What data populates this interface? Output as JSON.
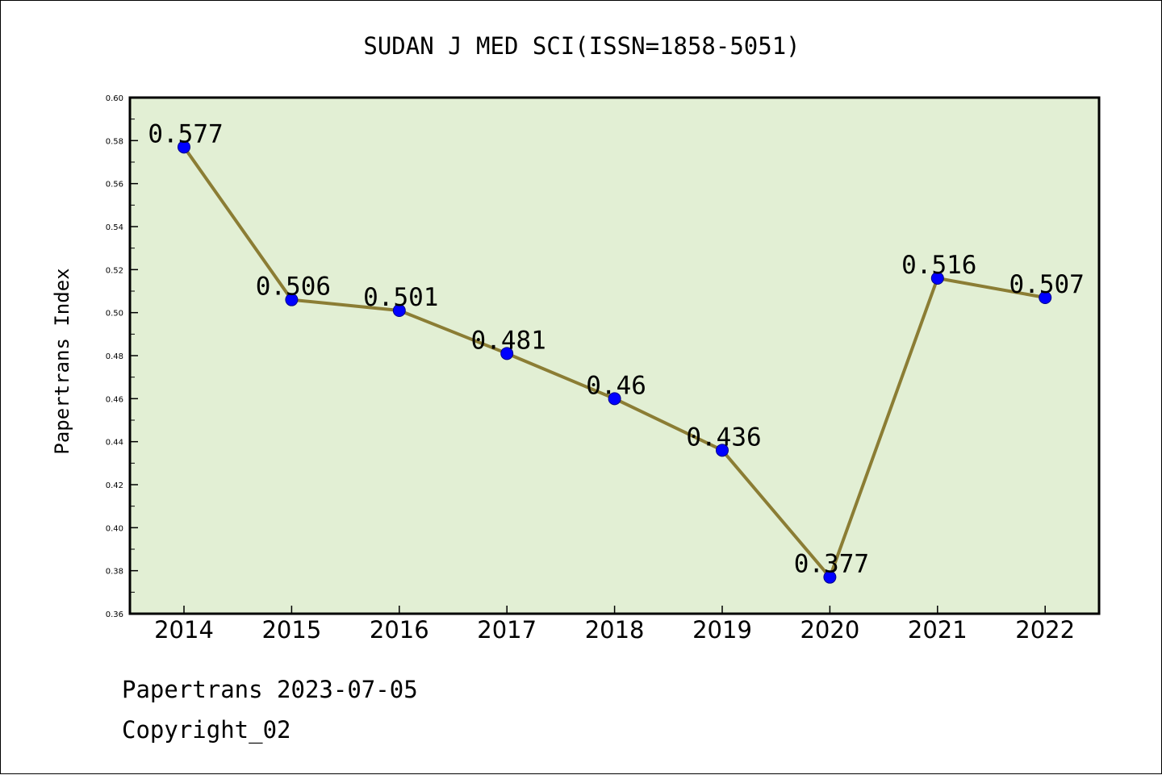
{
  "chart_data": {
    "type": "line",
    "title": "SUDAN J MED SCI(ISSN=1858-5051)",
    "xlabel": "",
    "ylabel": "Papertrans Index",
    "categories": [
      "2014",
      "2015",
      "2016",
      "2017",
      "2018",
      "2019",
      "2020",
      "2021",
      "2022"
    ],
    "values": [
      0.577,
      0.506,
      0.501,
      0.481,
      0.46,
      0.436,
      0.377,
      0.516,
      0.507
    ],
    "data_labels": [
      "0.577",
      "0.506",
      "0.501",
      "0.481",
      "0.46",
      "0.436",
      "0.377",
      "0.516",
      "0.507"
    ],
    "ylim": [
      0.36,
      0.6
    ],
    "yticks": [
      "0.36",
      "0.38",
      "0.40",
      "0.42",
      "0.44",
      "0.46",
      "0.48",
      "0.50",
      "0.52",
      "0.54",
      "0.56",
      "0.58",
      "0.60"
    ],
    "grid": false,
    "legend": "none",
    "colors": {
      "plot_background": "#e2efd4",
      "line": "#8b7d34",
      "marker": "#0000ff"
    }
  },
  "footer": {
    "line1": "Papertrans 2023-07-05",
    "line2": "Copyright_02"
  }
}
